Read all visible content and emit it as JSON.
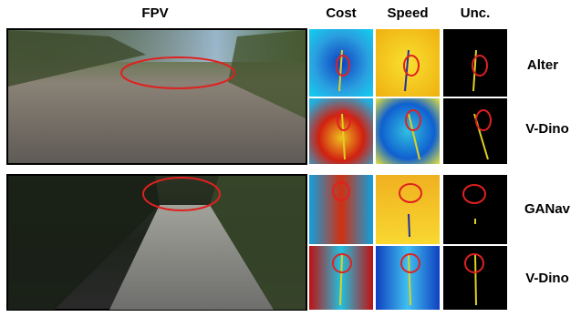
{
  "header": {
    "columns": [
      "FPV",
      "Cost",
      "Speed",
      "Unc."
    ]
  },
  "panels": [
    {
      "methods": [
        "Alter",
        "V-Dino"
      ]
    },
    {
      "methods": [
        "GANav",
        "V-Dino"
      ]
    }
  ]
}
